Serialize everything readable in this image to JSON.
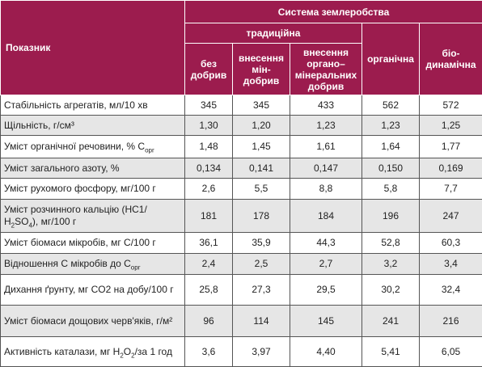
{
  "header": {
    "indicator": "Показник",
    "system": "Система землеробства",
    "traditional": "традиційна",
    "organic": "органічна",
    "biodynamic": "біо-динамічна",
    "no_fertilizer": "без добрив",
    "mineral": "внесення мін-добрив",
    "organo_mineral": "внесення органо–мінеральних добрив"
  },
  "table": {
    "rows": [
      {
        "label": [
          "Стабільність агрегатів, мл/10 хв"
        ],
        "values": [
          "345",
          "345",
          "433",
          "562",
          "572"
        ]
      },
      {
        "label": [
          "Щільність, г/см³"
        ],
        "values": [
          "1,30",
          "1,20",
          "1,23",
          "1,23",
          "1,25"
        ]
      },
      {
        "label": [
          "Уміст органічної речовини, % С",
          {
            "sub": "орг"
          }
        ],
        "values": [
          "1,48",
          "1,45",
          "1,61",
          "1,64",
          "1,77"
        ]
      },
      {
        "label": [
          "Уміст загального азоту, %"
        ],
        "values": [
          "0,134",
          "0,141",
          "0,147",
          "0,150",
          "0,169"
        ]
      },
      {
        "label": [
          "Уміст рухомого фосфору, мг/100 г"
        ],
        "values": [
          "2,6",
          "5,5",
          "8,8",
          "5,8",
          "7,7"
        ]
      },
      {
        "label": [
          "Уміст розчинного кальцію (НС1/Н",
          {
            "sub": "2"
          },
          "SO",
          {
            "sub": "4"
          },
          "), мг/100 г"
        ],
        "values": [
          "181",
          "178",
          "184",
          "196",
          "247"
        ]
      },
      {
        "label": [
          "Уміст біомаси мікробів, мг С/100 г"
        ],
        "values": [
          "36,1",
          "35,9",
          "44,3",
          "52,8",
          "60,3"
        ]
      },
      {
        "label": [
          "Відношення С мікробів до С",
          {
            "sub": "орг"
          }
        ],
        "values": [
          "2,4",
          "2,5",
          "2,7",
          "3,2",
          "3,4"
        ]
      },
      {
        "label": [
          "Дихання ґрунту, мг CO2 на добу/100 г"
        ],
        "values": [
          "25,8",
          "27,3",
          "29,5",
          "30,2",
          "32,4"
        ]
      },
      {
        "label": [
          "Уміст біомаси дощових черв'яків, г/м²"
        ],
        "values": [
          "96",
          "114",
          "145",
          "241",
          "216"
        ]
      },
      {
        "label": [
          "Активність каталази, мг Н",
          {
            "sub": "2"
          },
          "О",
          {
            "sub": "2"
          },
          "/за 1 год"
        ],
        "values": [
          "3,6",
          "3,97",
          "4,40",
          "5,41",
          "6,05"
        ]
      }
    ]
  }
}
